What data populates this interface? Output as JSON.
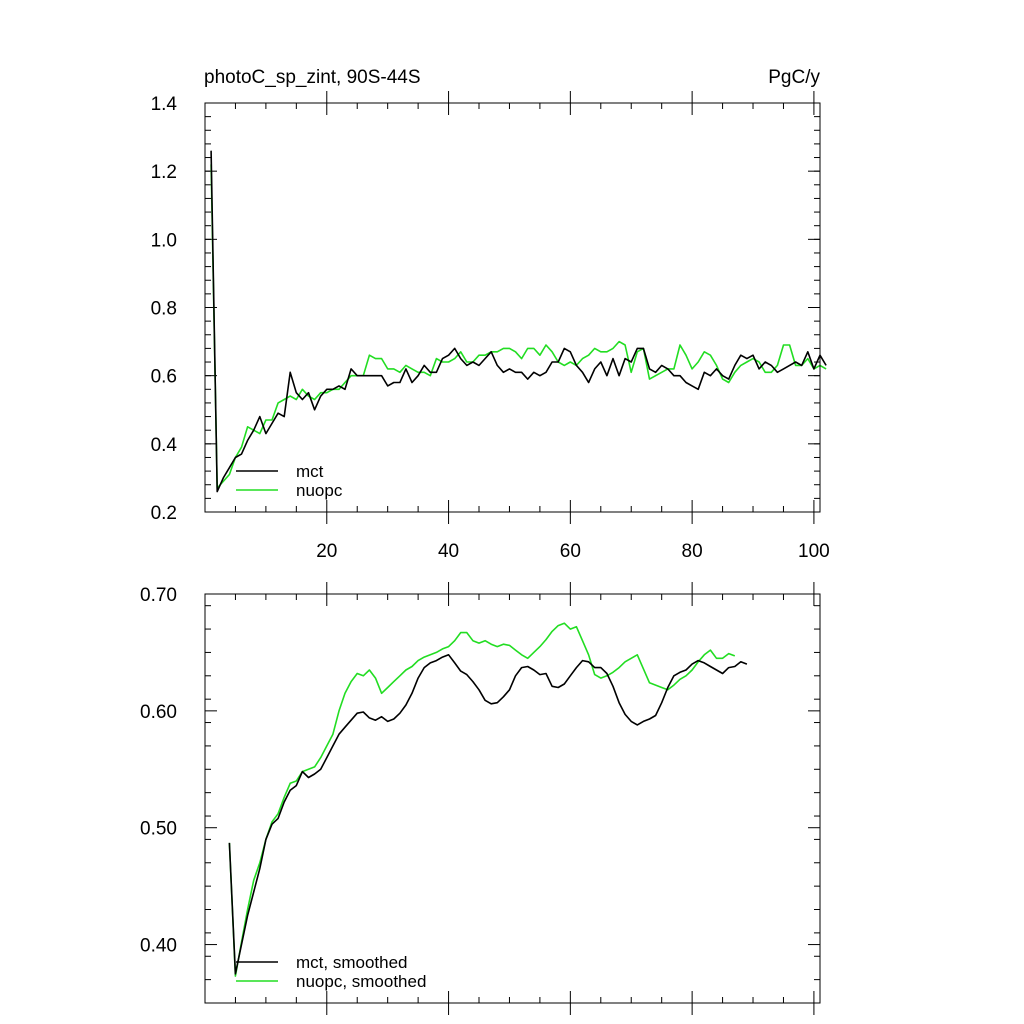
{
  "colors": {
    "mct": "#000000",
    "nuopc": "#22dd22",
    "background": "#ffffff"
  },
  "chart_data": [
    {
      "type": "line",
      "title": "photoC_sp_zint, 90S-44S",
      "units": "PgC/y",
      "xlim": [
        0,
        101
      ],
      "ylim": [
        0.2,
        1.4
      ],
      "xticks": [
        20,
        40,
        60,
        80,
        100
      ],
      "yticks": [
        0.2,
        0.4,
        0.6,
        0.8,
        1.0,
        1.2,
        1.4
      ],
      "ytick_labels": [
        "0.2",
        "0.4",
        "0.6",
        "0.8",
        "1.0",
        "1.2",
        "1.4"
      ],
      "legend_position": "bottom-left",
      "x_start": 1,
      "series": [
        {
          "name": "mct",
          "color": "#000000",
          "values": [
            1.26,
            0.26,
            0.3,
            0.33,
            0.36,
            0.37,
            0.41,
            0.44,
            0.48,
            0.43,
            0.46,
            0.49,
            0.48,
            0.61,
            0.55,
            0.53,
            0.55,
            0.5,
            0.54,
            0.56,
            0.56,
            0.57,
            0.56,
            0.62,
            0.6,
            0.6,
            0.6,
            0.6,
            0.6,
            0.57,
            0.58,
            0.58,
            0.62,
            0.58,
            0.6,
            0.63,
            0.61,
            0.61,
            0.65,
            0.66,
            0.68,
            0.65,
            0.63,
            0.64,
            0.63,
            0.65,
            0.67,
            0.63,
            0.61,
            0.62,
            0.61,
            0.61,
            0.59,
            0.61,
            0.6,
            0.61,
            0.64,
            0.64,
            0.68,
            0.67,
            0.63,
            0.61,
            0.58,
            0.62,
            0.64,
            0.6,
            0.65,
            0.6,
            0.65,
            0.64,
            0.68,
            0.68,
            0.62,
            0.61,
            0.63,
            0.62,
            0.6,
            0.6,
            0.58,
            0.57,
            0.56,
            0.61,
            0.6,
            0.62,
            0.6,
            0.59,
            0.63,
            0.66,
            0.65,
            0.66,
            0.62,
            0.64,
            0.63,
            0.61,
            0.62,
            0.63,
            0.64,
            0.63,
            0.67,
            0.62,
            0.66,
            0.63
          ]
        },
        {
          "name": "nuopc",
          "color": "#22dd22",
          "values": [
            1.22,
            0.27,
            0.29,
            0.31,
            0.36,
            0.39,
            0.45,
            0.44,
            0.43,
            0.47,
            0.47,
            0.52,
            0.53,
            0.54,
            0.53,
            0.56,
            0.54,
            0.53,
            0.55,
            0.55,
            0.56,
            0.56,
            0.58,
            0.6,
            0.6,
            0.6,
            0.66,
            0.65,
            0.65,
            0.62,
            0.62,
            0.61,
            0.63,
            0.62,
            0.61,
            0.61,
            0.6,
            0.65,
            0.64,
            0.64,
            0.65,
            0.67,
            0.64,
            0.64,
            0.66,
            0.66,
            0.67,
            0.67,
            0.68,
            0.68,
            0.67,
            0.65,
            0.68,
            0.68,
            0.66,
            0.69,
            0.67,
            0.64,
            0.63,
            0.64,
            0.63,
            0.65,
            0.66,
            0.68,
            0.67,
            0.67,
            0.68,
            0.7,
            0.69,
            0.61,
            0.67,
            0.68,
            0.59,
            0.6,
            0.61,
            0.62,
            0.62,
            0.69,
            0.66,
            0.62,
            0.64,
            0.67,
            0.66,
            0.63,
            0.59,
            0.58,
            0.61,
            0.63,
            0.64,
            0.65,
            0.64,
            0.61,
            0.61,
            0.63,
            0.69,
            0.69,
            0.63,
            0.63,
            0.65,
            0.62,
            0.63,
            0.62
          ]
        }
      ]
    },
    {
      "type": "line",
      "xlim": [
        0,
        101
      ],
      "ylim": [
        0.35,
        0.7
      ],
      "xticks": [
        20,
        40,
        60,
        80,
        100
      ],
      "yticks": [
        0.4,
        0.5,
        0.6,
        0.7
      ],
      "ytick_labels": [
        "0.40",
        "0.50",
        "0.60",
        "0.70"
      ],
      "legend_position": "bottom-left",
      "x_start": 4,
      "series": [
        {
          "name": "mct, smoothed",
          "color": "#000000",
          "values": [
            0.487,
            0.375,
            0.4,
            0.425,
            0.445,
            0.465,
            0.49,
            0.503,
            0.508,
            0.522,
            0.532,
            0.536,
            0.548,
            0.543,
            0.546,
            0.55,
            0.56,
            0.57,
            0.58,
            0.586,
            0.592,
            0.598,
            0.599,
            0.594,
            0.592,
            0.595,
            0.591,
            0.593,
            0.598,
            0.605,
            0.615,
            0.628,
            0.637,
            0.641,
            0.643,
            0.646,
            0.648,
            0.641,
            0.634,
            0.631,
            0.625,
            0.618,
            0.609,
            0.606,
            0.607,
            0.612,
            0.618,
            0.63,
            0.637,
            0.638,
            0.635,
            0.631,
            0.632,
            0.621,
            0.62,
            0.623,
            0.63,
            0.637,
            0.643,
            0.642,
            0.637,
            0.637,
            0.632,
            0.621,
            0.607,
            0.597,
            0.591,
            0.588,
            0.591,
            0.593,
            0.596,
            0.607,
            0.62,
            0.63,
            0.633,
            0.635,
            0.64,
            0.643,
            0.641,
            0.638,
            0.635,
            0.632,
            0.637,
            0.638,
            0.642,
            0.64
          ]
        },
        {
          "name": "nuopc, smoothed",
          "color": "#22dd22",
          "values": [
            0.487,
            0.373,
            0.402,
            0.43,
            0.455,
            0.47,
            0.49,
            0.505,
            0.512,
            0.526,
            0.538,
            0.54,
            0.548,
            0.55,
            0.552,
            0.56,
            0.57,
            0.58,
            0.6,
            0.615,
            0.625,
            0.632,
            0.63,
            0.635,
            0.628,
            0.615,
            0.62,
            0.625,
            0.63,
            0.635,
            0.638,
            0.643,
            0.646,
            0.648,
            0.65,
            0.653,
            0.655,
            0.66,
            0.667,
            0.667,
            0.66,
            0.658,
            0.66,
            0.657,
            0.655,
            0.657,
            0.656,
            0.652,
            0.648,
            0.645,
            0.65,
            0.655,
            0.661,
            0.668,
            0.673,
            0.675,
            0.67,
            0.672,
            0.66,
            0.648,
            0.631,
            0.628,
            0.63,
            0.633,
            0.637,
            0.642,
            0.645,
            0.648,
            0.636,
            0.624,
            0.622,
            0.62,
            0.618,
            0.622,
            0.627,
            0.63,
            0.635,
            0.642,
            0.648,
            0.652,
            0.645,
            0.645,
            0.649,
            0.647
          ]
        }
      ]
    }
  ]
}
